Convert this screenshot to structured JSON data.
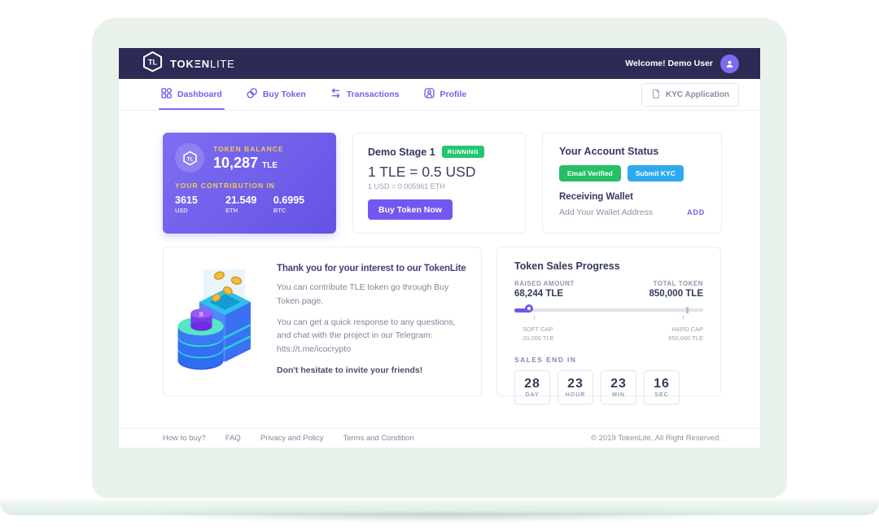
{
  "header": {
    "brand_bold": "TOKΞN",
    "brand_light": "LITE",
    "welcome": "Welcome! Demo User"
  },
  "nav": {
    "tabs": [
      {
        "label": "Dashboard"
      },
      {
        "label": "Buy Token"
      },
      {
        "label": "Transactions"
      },
      {
        "label": "Profile"
      }
    ],
    "kyc_button": "KYC Application"
  },
  "balance_card": {
    "label": "TOKEN BALANCE",
    "amount": "10,287",
    "currency": "TLE",
    "contribution_label": "YOUR CONTRIBUTION IN",
    "contributions": [
      {
        "value": "3615",
        "unit": "USD"
      },
      {
        "value": "21.549",
        "unit": "ETH"
      },
      {
        "value": "0.6995",
        "unit": "BTC"
      }
    ]
  },
  "stage_card": {
    "title": "Demo Stage 1",
    "status": "RUNNING",
    "rate": "1 TLE = 0.5 USD",
    "rate_detail": "1 USD = 0.005961 ETH",
    "buy_button": "Buy Token Now"
  },
  "account_card": {
    "title": "Your Account Status",
    "email_badge": "Email Verified",
    "kyc_badge": "Submit KYC",
    "wallet_title": "Receiving Wallet",
    "wallet_text": "Add Your Wallet Address",
    "add_button": "ADD"
  },
  "welcome_card": {
    "title": "Thank you for your interest to our TokenLite",
    "paragraph1": "You can contribute TLE token go through Buy Token page.",
    "paragraph2": "You can get a quick response to any questions, and chat with the project in our Telegram: htts://t.me/icocrypto",
    "note": "Don't hesitate to invite your friends!"
  },
  "progress_card": {
    "title": "Token Sales Progress",
    "raised_label": "RAISED AMOUNT",
    "raised_value": "68,244 TLE",
    "total_label": "TOTAL TOKEN",
    "total_value": "850,000 TLE",
    "percent": 9,
    "soft_cap_label": "SOFT CAP",
    "soft_cap_value": "20,000 TLE",
    "hard_cap_label": "HARD CAP",
    "hard_cap_value": "850,000 TLE",
    "countdown_label": "SALES END IN",
    "countdown": [
      {
        "value": "28",
        "unit": "DAY"
      },
      {
        "value": "23",
        "unit": "HOUR"
      },
      {
        "value": "23",
        "unit": "MIN"
      },
      {
        "value": "16",
        "unit": "SEC"
      }
    ]
  },
  "footer": {
    "links": [
      {
        "label": "How to buy?"
      },
      {
        "label": "FAQ"
      },
      {
        "label": "Privacy and Policy"
      },
      {
        "label": "Terms and Condition"
      }
    ],
    "copyright": "© 2019 TokenLite. All Right Reserved."
  },
  "colors": {
    "header_bg": "#2c2b55",
    "accent_purple": "#6e62e8",
    "balance_gradient_start": "#7d6ef2",
    "balance_gradient_end": "#6453e4",
    "gold_label": "#f5c94e",
    "running_green": "#23c770",
    "verified_green": "#26bf66",
    "kyc_blue": "#2fa9ee",
    "buy_button_purple": "#7457f0",
    "bezel_mint": "#e9f1eb"
  }
}
